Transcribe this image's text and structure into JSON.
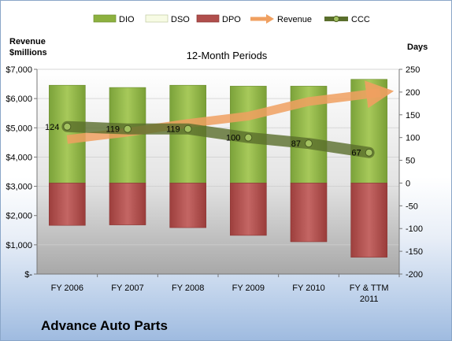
{
  "chart_data": {
    "type": "bar",
    "title": "12-Month Periods",
    "company": "Advance Auto Parts",
    "left_axis_label": [
      "Revenue",
      "$millions"
    ],
    "right_axis_label": "Days",
    "categories": [
      [
        "FY 2006"
      ],
      [
        "FY 2007"
      ],
      [
        "FY 2008"
      ],
      [
        "FY 2009"
      ],
      [
        "FY 2010"
      ],
      [
        "FY & TTM",
        "2011"
      ]
    ],
    "left_axis": {
      "min": 0,
      "max": 7000,
      "step": 1000,
      "tick_labels": [
        "$-",
        "$1,000",
        "$2,000",
        "$3,000",
        "$4,000",
        "$5,000",
        "$6,000",
        "$7,000"
      ]
    },
    "right_axis": {
      "min": -200,
      "max": 250,
      "step": 50
    },
    "series": [
      {
        "name": "DIO",
        "kind": "bar",
        "axis": "right",
        "color": "#8db13f",
        "values": [
          215,
          210,
          215,
          213,
          213,
          228
        ]
      },
      {
        "name": "DSO",
        "kind": "bar",
        "axis": "right",
        "color": "#f4f9dc",
        "values": [
          0,
          0,
          0,
          0,
          0,
          0
        ]
      },
      {
        "name": "DPO",
        "kind": "bar",
        "axis": "right",
        "color": "#b04e4c",
        "values": [
          -93,
          -92,
          -98,
          -115,
          -129,
          -163
        ]
      },
      {
        "name": "Revenue",
        "kind": "line",
        "axis": "left",
        "color": "#f0a060",
        "values": [
          4600,
          4850,
          5150,
          5400,
          5900,
          6200
        ]
      },
      {
        "name": "CCC",
        "kind": "line",
        "axis": "right",
        "color": "#556b2f",
        "values": [
          124,
          119,
          119,
          100,
          87,
          67
        ],
        "data_labels": [
          "124",
          "119",
          "119",
          "100",
          "87",
          "67"
        ]
      }
    ],
    "legend_position": "top"
  }
}
